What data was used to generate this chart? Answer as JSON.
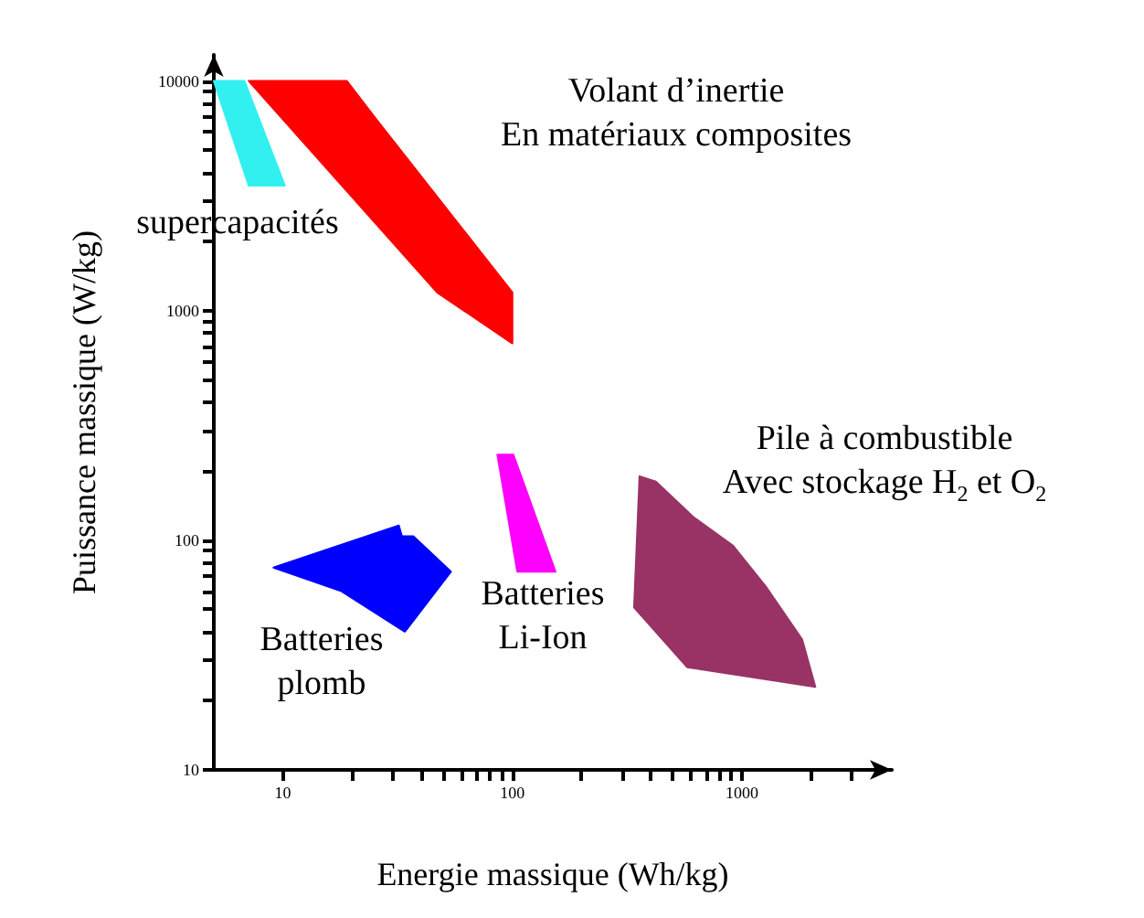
{
  "chart_data": {
    "type": "area",
    "xlabel": "Energie massique (Wh/kg)",
    "ylabel": "Puissance massique (W/kg)",
    "log": "xy",
    "grid": false,
    "xlim": [
      5,
      4500
    ],
    "ylim": [
      10,
      13000
    ],
    "xticks": [
      10,
      {
        "value": 20,
        "label": null
      },
      {
        "value": 30,
        "label": null
      },
      {
        "value": 40,
        "label": null
      },
      {
        "value": 50,
        "label": null
      },
      {
        "value": 60,
        "label": null
      },
      {
        "value": 70,
        "label": null
      },
      {
        "value": 80,
        "label": null
      },
      {
        "value": 90,
        "label": null
      },
      100,
      {
        "value": 200,
        "label": null
      },
      {
        "value": 300,
        "label": null
      },
      {
        "value": 400,
        "label": null
      },
      {
        "value": 500,
        "label": null
      },
      {
        "value": 600,
        "label": null
      },
      {
        "value": 700,
        "label": null
      },
      {
        "value": 800,
        "label": null
      },
      {
        "value": 900,
        "label": null
      },
      1000,
      {
        "value": 2000,
        "label": null
      },
      {
        "value": 3000,
        "label": null
      }
    ],
    "yticks": [
      10,
      {
        "value": 20,
        "label": null
      },
      {
        "value": 30,
        "label": null
      },
      {
        "value": 40,
        "label": null
      },
      {
        "value": 50,
        "label": null
      },
      {
        "value": 60,
        "label": null
      },
      {
        "value": 70,
        "label": null
      },
      {
        "value": 80,
        "label": null
      },
      {
        "value": 90,
        "label": null
      },
      100,
      {
        "value": 200,
        "label": null
      },
      {
        "value": 300,
        "label": null
      },
      {
        "value": 400,
        "label": null
      },
      {
        "value": 500,
        "label": null
      },
      {
        "value": 600,
        "label": null
      },
      {
        "value": 700,
        "label": null
      },
      {
        "value": 800,
        "label": null
      },
      {
        "value": 900,
        "label": null
      },
      1000,
      {
        "value": 2000,
        "label": null
      },
      {
        "value": 3000,
        "label": null
      },
      {
        "value": 4000,
        "label": null
      },
      {
        "value": 5000,
        "label": null
      },
      {
        "value": 6000,
        "label": null
      },
      {
        "value": 7000,
        "label": null
      },
      {
        "value": 8000,
        "label": null
      },
      {
        "value": 9000,
        "label": null
      },
      10000
    ],
    "series": [
      {
        "name": "supercapacités",
        "color": "#33f0f0",
        "x": [
          5,
          6.8,
          10.2,
          7.1
        ],
        "values": [
          10000,
          10000,
          3500,
          3500
        ]
      },
      {
        "name": "Volant d’inertie\nEn matériaux composites",
        "color": "#ff0000",
        "x": [
          7.1,
          19,
          25,
          100,
          100,
          47
        ],
        "values": [
          10000,
          10000,
          7000,
          1200,
          720,
          1200
        ]
      },
      {
        "name": "Batteries\nLi-Ion",
        "color": "#ff00ff",
        "x": [
          86,
          101,
          154,
          105
        ],
        "values": [
          236,
          236,
          73,
          73
        ]
      },
      {
        "name": "Batteries\nplomb",
        "color": "#0000ff",
        "x": [
          9.1,
          32,
          33,
          37,
          54,
          34,
          18
        ],
        "values": [
          76,
          116,
          104,
          104,
          73,
          40,
          60
        ]
      },
      {
        "name": "Pile à combustible\nAvec stockage H$_{2}$ et O$_{2}$",
        "color": "#993366",
        "x": [
          358,
          422,
          610,
          912,
          1270,
          1830,
          2090,
          577,
          339
        ],
        "values": [
          190,
          180,
          127,
          95,
          63,
          37,
          23,
          28,
          51
        ]
      }
    ]
  }
}
